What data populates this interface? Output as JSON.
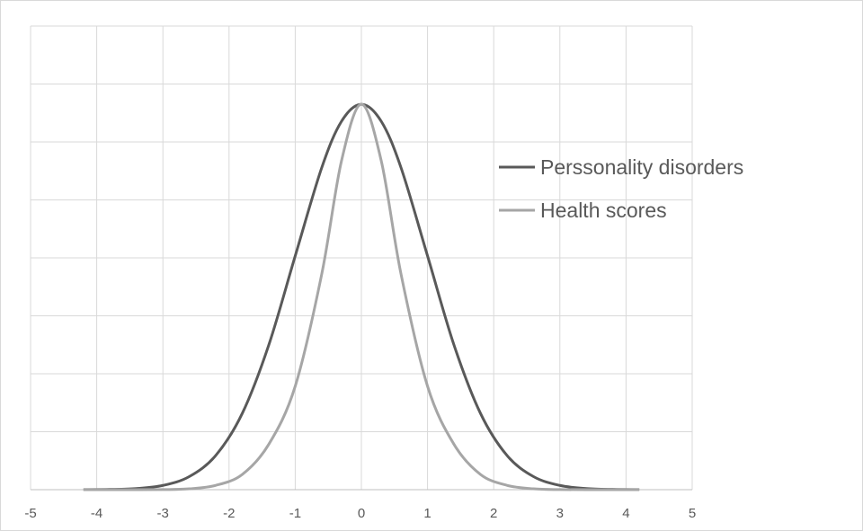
{
  "chart_data": {
    "type": "line",
    "title": "",
    "xlabel": "",
    "ylabel": "",
    "xlim": [
      -5,
      5
    ],
    "ylim": [
      0,
      0.48
    ],
    "x_ticks": [
      "-5",
      "-4",
      "-3",
      "-2",
      "-1",
      "0",
      "1",
      "2",
      "3",
      "4",
      "5"
    ],
    "grid": true,
    "legend_position": "right",
    "series": [
      {
        "name": "Perssonality disorders",
        "color": "#595959",
        "x": [
          -4.2,
          -3.8,
          -3.4,
          -3.0,
          -2.6,
          -2.2,
          -1.8,
          -1.4,
          -1.0,
          -0.6,
          -0.3,
          0.0,
          0.3,
          0.6,
          1.0,
          1.4,
          1.8,
          2.2,
          2.6,
          3.0,
          3.4,
          3.8,
          4.2
        ],
        "y": [
          0.0001,
          0.0003,
          0.0012,
          0.0044,
          0.0136,
          0.0355,
          0.079,
          0.1497,
          0.242,
          0.3332,
          0.3814,
          0.3989,
          0.3814,
          0.3332,
          0.242,
          0.1497,
          0.079,
          0.0355,
          0.0136,
          0.0044,
          0.0012,
          0.0003,
          0.0001
        ]
      },
      {
        "name": "Health scores",
        "color": "#a6a6a6",
        "x": [
          -4.2,
          -3.6,
          -3.0,
          -2.6,
          -2.2,
          -1.8,
          -1.4,
          -1.0,
          -0.6,
          -0.3,
          0.0,
          0.3,
          0.6,
          1.0,
          1.4,
          1.8,
          2.2,
          2.6,
          3.0,
          3.6,
          4.2
        ],
        "y": [
          0.0,
          0.0,
          0.0001,
          0.0009,
          0.0045,
          0.0158,
          0.0469,
          0.1071,
          0.2229,
          0.3406,
          0.3989,
          0.3406,
          0.2229,
          0.1071,
          0.0469,
          0.0158,
          0.0045,
          0.0009,
          0.0001,
          0.0,
          0.0
        ]
      }
    ]
  }
}
